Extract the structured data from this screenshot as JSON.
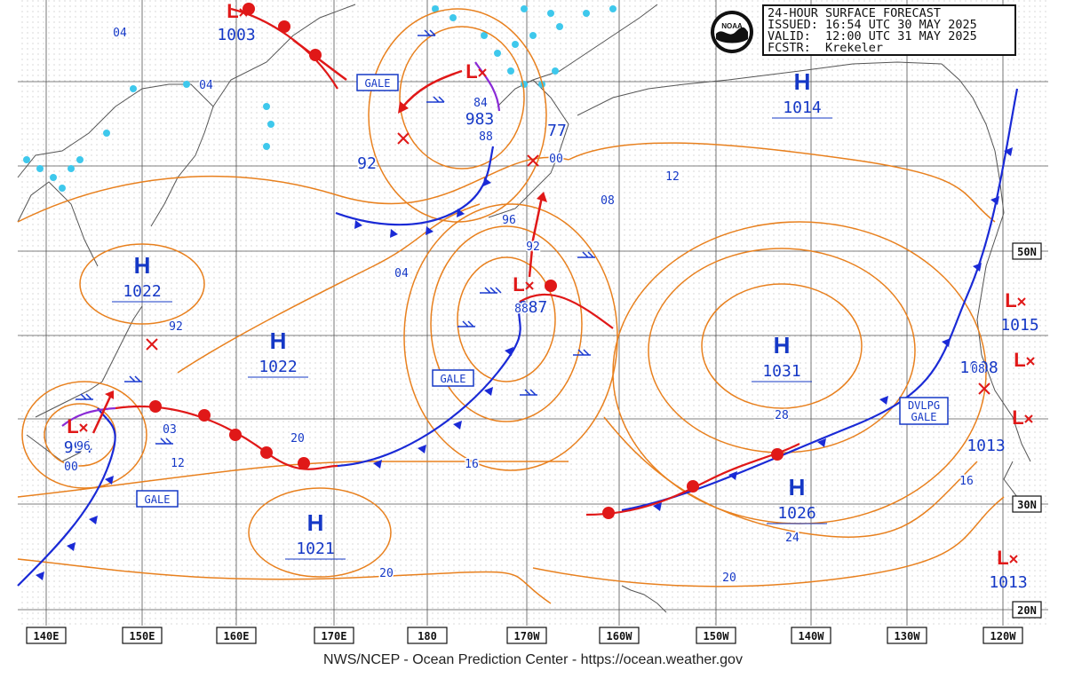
{
  "header": {
    "title": "24-HOUR SURFACE FORECAST",
    "issued": "ISSUED: 16:54 UTC 30 MAY 2025",
    "valid": "VALID:  12:00 UTC 31 MAY 2025",
    "forecaster": "FCSTR:  Krekeler",
    "logo_text": "NOAA"
  },
  "footer": "NWS/NCEP - Ocean Prediction Center - https://ocean.weather.gov",
  "longitudes": [
    "140E",
    "150E",
    "160E",
    "170E",
    "180",
    "170W",
    "160W",
    "150W",
    "140W",
    "130W",
    "120W"
  ],
  "latitudes": [
    "50N",
    "30N",
    "20N"
  ],
  "highs": [
    {
      "pressure": "1022"
    },
    {
      "pressure": "1022"
    },
    {
      "pressure": "1021"
    },
    {
      "pressure": "1031"
    },
    {
      "pressure": "1026"
    },
    {
      "pressure": "1014"
    }
  ],
  "lows": [
    {
      "pressure": "1003"
    },
    {
      "pressure": "983"
    },
    {
      "pressure": "987"
    },
    {
      "pressure": "994"
    },
    {
      "pressure": "1015"
    },
    {
      "pressure": "1013"
    },
    {
      "pressure": "1013"
    },
    {
      "pressure": "1008"
    }
  ],
  "warnings": [
    "GALE",
    "GALE",
    "GALE",
    "DVLPG GALE"
  ],
  "isobar_labels": [
    "04",
    "04",
    "04",
    "92",
    "92",
    "92",
    "96",
    "96",
    "88",
    "88",
    "84",
    "77",
    "00",
    "00",
    "08",
    "08",
    "12",
    "12",
    "16",
    "16",
    "20",
    "20",
    "20",
    "24",
    "28",
    "03"
  ],
  "colors": {
    "isobar": "#e8801e",
    "cold_front": "#1a2ad6",
    "warm_front": "#e01818",
    "occluded": "#8a2ad6",
    "ice": "#3ec8ec",
    "text_blue": "#1538c6",
    "low_red": "#e01818",
    "coast": "#555555",
    "grid": "#333333"
  }
}
